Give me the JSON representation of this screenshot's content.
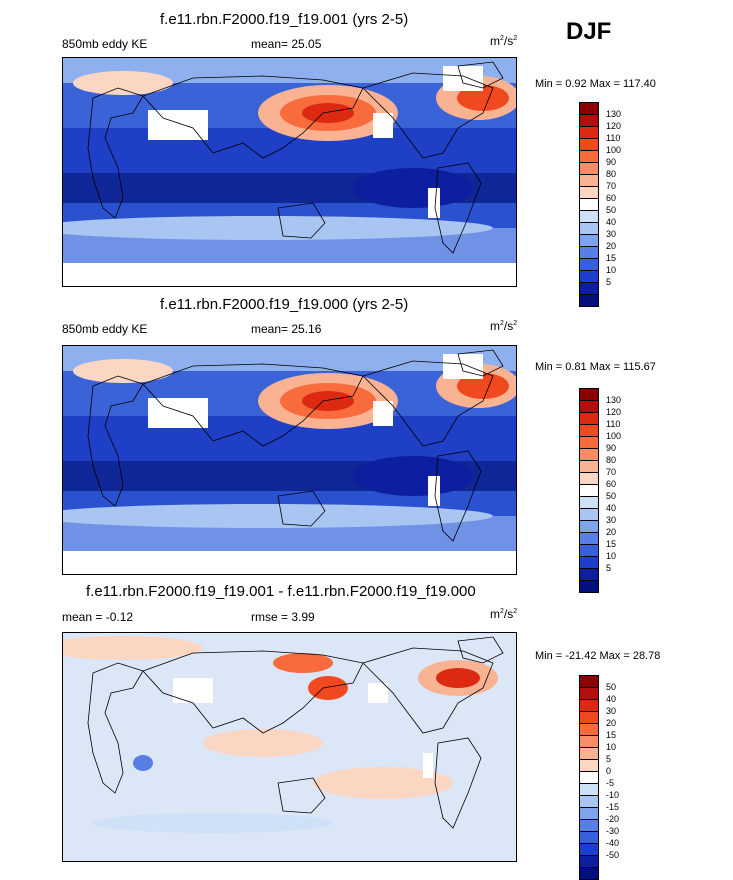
{
  "season": "DJF",
  "panels": [
    {
      "title": "f.e11.rbn.F2000.f19_f19.001 (yrs 2-5)",
      "left_label": "850mb eddy KE",
      "center_label": "mean=  25.05",
      "units": "m",
      "units_exp": "2",
      "units_den": "/s",
      "units_den_exp": "2",
      "minmax": "Min =   0.92 Max = 117.40",
      "colorbar_labels": [
        "130",
        "120",
        "110",
        "100",
        "90",
        "80",
        "70",
        "60",
        "50",
        "40",
        "30",
        "20",
        "15",
        "10",
        "5"
      ],
      "colorbar_colors": [
        "#8b0000",
        "#b50e0e",
        "#dc2a12",
        "#f0481f",
        "#f76b3d",
        "#f88d66",
        "#f9b393",
        "#fbd6c3",
        "#ffffff",
        "#cfe1f6",
        "#a9c6f2",
        "#7fa4ee",
        "#587fe6",
        "#3660dc",
        "#1c3fcc",
        "#0d1f9e",
        "#041080"
      ],
      "map_variant": "full"
    },
    {
      "title": "f.e11.rbn.F2000.f19_f19.000 (yrs 2-5)",
      "left_label": "850mb eddy KE",
      "center_label": "mean=  25.16",
      "units": "m",
      "units_exp": "2",
      "units_den": "/s",
      "units_den_exp": "2",
      "minmax": "Min =   0.81 Max = 115.67",
      "colorbar_labels": [
        "130",
        "120",
        "110",
        "100",
        "90",
        "80",
        "70",
        "60",
        "50",
        "40",
        "30",
        "20",
        "15",
        "10",
        "5"
      ],
      "colorbar_colors": [
        "#8b0000",
        "#b50e0e",
        "#dc2a12",
        "#f0481f",
        "#f76b3d",
        "#f88d66",
        "#f9b393",
        "#fbd6c3",
        "#ffffff",
        "#cfe1f6",
        "#a9c6f2",
        "#7fa4ee",
        "#587fe6",
        "#3660dc",
        "#1c3fcc",
        "#0d1f9e",
        "#041080"
      ],
      "map_variant": "full"
    },
    {
      "title": "f.e11.rbn.F2000.f19_f19.001 - f.e11.rbn.F2000.f19_f19.000",
      "left_label": "mean =  -0.12",
      "center_label": "rmse =   3.99",
      "units": "m",
      "units_exp": "2",
      "units_den": "/s",
      "units_den_exp": "2",
      "minmax": "Min = -21.42 Max =  28.78",
      "colorbar_labels": [
        "50",
        "40",
        "30",
        "20",
        "15",
        "10",
        "5",
        "0",
        "-5",
        "-10",
        "-15",
        "-20",
        "-30",
        "-40",
        "-50"
      ],
      "colorbar_colors": [
        "#8b0000",
        "#b50e0e",
        "#dc2a12",
        "#f0481f",
        "#f76b3d",
        "#f88d66",
        "#f9b393",
        "#fbd6c3",
        "#ffffff",
        "#cfe1f6",
        "#a9c6f2",
        "#7fa4ee",
        "#587fe6",
        "#3660dc",
        "#1c3fcc",
        "#0d1f9e",
        "#041080"
      ],
      "map_variant": "diff"
    }
  ],
  "chart_data": [
    {
      "type": "heatmap",
      "title": "f.e11.rbn.F2000.f19_f19.001 (yrs 2-5)",
      "variable": "850mb eddy KE",
      "units": "m2/s2",
      "mean": 25.05,
      "min": 0.92,
      "max": 117.4,
      "levels": [
        5,
        10,
        15,
        20,
        30,
        40,
        50,
        60,
        70,
        80,
        90,
        100,
        110,
        120,
        130
      ],
      "season": "DJF"
    },
    {
      "type": "heatmap",
      "title": "f.e11.rbn.F2000.f19_f19.000 (yrs 2-5)",
      "variable": "850mb eddy KE",
      "units": "m2/s2",
      "mean": 25.16,
      "min": 0.81,
      "max": 115.67,
      "levels": [
        5,
        10,
        15,
        20,
        30,
        40,
        50,
        60,
        70,
        80,
        90,
        100,
        110,
        120,
        130
      ],
      "season": "DJF"
    },
    {
      "type": "heatmap",
      "title": "f.e11.rbn.F2000.f19_f19.001 - f.e11.rbn.F2000.f19_f19.000",
      "mean": -0.12,
      "rmse": 3.99,
      "units": "m2/s2",
      "min": -21.42,
      "max": 28.78,
      "levels": [
        -50,
        -40,
        -30,
        -20,
        -15,
        -10,
        -5,
        0,
        5,
        10,
        15,
        20,
        30,
        40,
        50
      ],
      "season": "DJF"
    }
  ]
}
